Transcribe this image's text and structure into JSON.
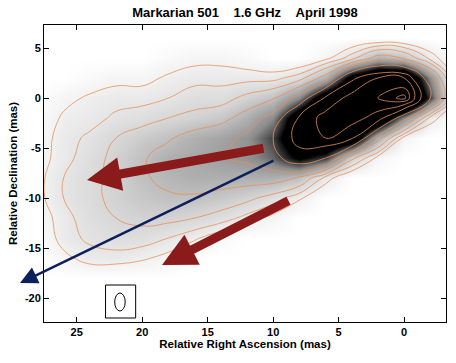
{
  "chart_data": {
    "type": "contour",
    "title": "Markarian 501    1.6 GHz    April 1998",
    "x_label": "Relative Right Ascension (mas)",
    "y_label": "Relative Declination (mas)",
    "x": [
      28,
      26,
      24,
      22,
      20,
      18,
      16,
      14,
      12,
      10,
      8,
      6,
      4,
      2,
      0,
      -2,
      -4
    ],
    "y": [
      -20,
      -18,
      -16,
      -14,
      -12,
      -10,
      -8,
      -6,
      -4,
      -2,
      0,
      2,
      4,
      6
    ],
    "z": [
      [
        0,
        0,
        0,
        0,
        0,
        0,
        0,
        0,
        0,
        0,
        0,
        0,
        0,
        0,
        0,
        0,
        0
      ],
      [
        0,
        0,
        0,
        0,
        0,
        0,
        0,
        0,
        0,
        0,
        0,
        0,
        0,
        0,
        0,
        0,
        0
      ],
      [
        0,
        0.5,
        1,
        1,
        0.8,
        0.5,
        0,
        0,
        0,
        0,
        0,
        0,
        0,
        0,
        0,
        0,
        0
      ],
      [
        0,
        1,
        1.3,
        1.5,
        1.5,
        1.2,
        0.8,
        0.3,
        0,
        0,
        0,
        0,
        0,
        0,
        0,
        0,
        0
      ],
      [
        0.3,
        1,
        1.5,
        1.8,
        2,
        2,
        1.8,
        1.5,
        1,
        0.5,
        0,
        0,
        0,
        0,
        0,
        0,
        0
      ],
      [
        0.5,
        1.2,
        1.6,
        2,
        2.3,
        2.5,
        2.5,
        2.3,
        2,
        1.5,
        0.8,
        0,
        0,
        0,
        0,
        0,
        0
      ],
      [
        0.5,
        1.2,
        1.6,
        2,
        2.5,
        2.8,
        3,
        3,
        3,
        3,
        2.5,
        1,
        0,
        0,
        0,
        0,
        0
      ],
      [
        0.4,
        1,
        1.5,
        2,
        2.5,
        3,
        3.2,
        3.5,
        3.8,
        4.5,
        6,
        5,
        2,
        0.5,
        0,
        0,
        0
      ],
      [
        0.3,
        1,
        1.3,
        1.8,
        2.2,
        2.5,
        3,
        3.3,
        3.8,
        5,
        7.5,
        8,
        7,
        3,
        0.5,
        0,
        0
      ],
      [
        0.2,
        0.8,
        1,
        1.3,
        1.5,
        1.8,
        2,
        2.3,
        3,
        4,
        7,
        8.5,
        8.5,
        7.5,
        4,
        1,
        0
      ],
      [
        0,
        0.5,
        0.8,
        1,
        1,
        1.2,
        1.5,
        1.5,
        2,
        2.5,
        4,
        7,
        8.5,
        9,
        10,
        5,
        0.5
      ],
      [
        0,
        0,
        0.3,
        0.5,
        0.5,
        0.8,
        1,
        1,
        1,
        1,
        1.5,
        3,
        6.5,
        8,
        8,
        4,
        0.3
      ],
      [
        0,
        0,
        0,
        0,
        0,
        0.3,
        0.5,
        0.5,
        0.3,
        0,
        0,
        0.5,
        1.5,
        3,
        2.5,
        1,
        0
      ],
      [
        0,
        0,
        0,
        0,
        0,
        0,
        0,
        0,
        0,
        0,
        0,
        0,
        0,
        0,
        0,
        0,
        0
      ]
    ],
    "zlim": [
      0,
      10
    ],
    "contour_levels": [
      0.7,
      1.2,
      1.8,
      2.6,
      3.6,
      5,
      6.8,
      8,
      9,
      9.7
    ],
    "xlim": [
      27.5,
      -3.2
    ],
    "ylim": [
      -22.4,
      7.3
    ],
    "xticks": [
      25,
      20,
      15,
      10,
      5,
      0
    ],
    "yticks": [
      5,
      0,
      -5,
      -10,
      -15,
      -20
    ],
    "grid": false,
    "color": "#000000"
  }
}
